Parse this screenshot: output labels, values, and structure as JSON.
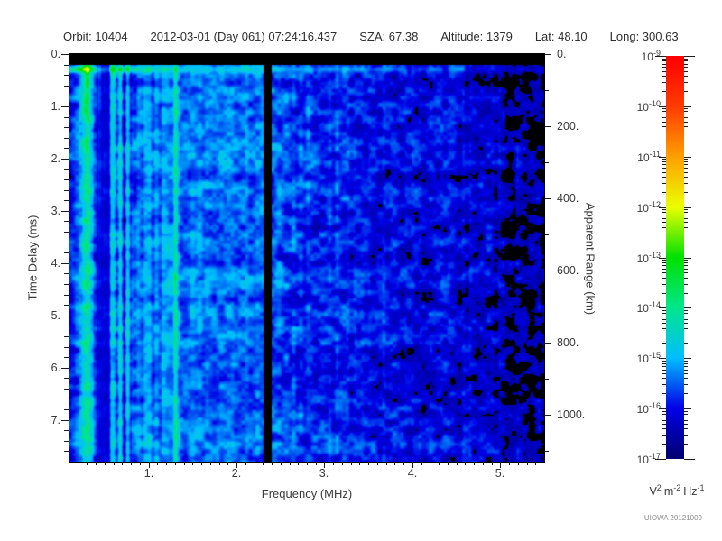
{
  "header": {
    "fields": [
      {
        "label": "Orbit:",
        "value": "10404"
      },
      {
        "label": "",
        "value": "2012-03-01 (Day 061) 07:24:16.437"
      },
      {
        "label": "SZA:",
        "value": "67.38"
      },
      {
        "label": "Altitude:",
        "value": "1379"
      },
      {
        "label": "Lat:",
        "value": "48.10"
      },
      {
        "label": "Long:",
        "value": "300.63"
      }
    ]
  },
  "axes": {
    "x": {
      "title": "Frequency (MHz)",
      "min": 0.1,
      "max": 5.5,
      "minor_step": 0.1,
      "majors": [
        {
          "v": 1,
          "label": "1."
        },
        {
          "v": 2,
          "label": "2."
        },
        {
          "v": 3,
          "label": "3."
        },
        {
          "v": 4,
          "label": "4."
        },
        {
          "v": 5,
          "label": "5."
        }
      ]
    },
    "y_left": {
      "title": "Time Delay (ms)",
      "min": 0,
      "max": 7.8,
      "minor_step": 0.2,
      "majors": [
        {
          "v": 0,
          "label": "0."
        },
        {
          "v": 1,
          "label": "1."
        },
        {
          "v": 2,
          "label": "2."
        },
        {
          "v": 3,
          "label": "3."
        },
        {
          "v": 4,
          "label": "4."
        },
        {
          "v": 5,
          "label": "5."
        },
        {
          "v": 6,
          "label": "6."
        },
        {
          "v": 7,
          "label": "7."
        }
      ]
    },
    "y_right": {
      "title": "Apparent Range (km)",
      "min": 0,
      "max": 1130,
      "minor_step": 100,
      "majors": [
        {
          "v": 0,
          "label": "0."
        },
        {
          "v": 200,
          "label": "200."
        },
        {
          "v": 400,
          "label": "400."
        },
        {
          "v": 600,
          "label": "600."
        },
        {
          "v": 800,
          "label": "800."
        },
        {
          "v": 1000,
          "label": "1000."
        }
      ]
    }
  },
  "colorbar": {
    "base": "10",
    "exponents": [
      "-9",
      "-10",
      "-11",
      "-12",
      "-13",
      "-14",
      "-15",
      "-16",
      "-17"
    ],
    "unit_parts": [
      {
        "text": "V",
        "sup": "2"
      },
      {
        "text": "m",
        "sup": "-2"
      },
      {
        "text": "Hz",
        "sup": "-1"
      }
    ],
    "stops": [
      {
        "v": 0.0,
        "color": "#000070"
      },
      {
        "v": 0.125,
        "color": "#0000e6"
      },
      {
        "v": 0.25,
        "color": "#00beff"
      },
      {
        "v": 0.375,
        "color": "#00e68c"
      },
      {
        "v": 0.5,
        "color": "#00e100"
      },
      {
        "v": 0.625,
        "color": "#ebff00"
      },
      {
        "v": 0.75,
        "color": "#ffa000"
      },
      {
        "v": 0.875,
        "color": "#ff3c00"
      },
      {
        "v": 1.0,
        "color": "#ff0000"
      }
    ]
  },
  "footer": {
    "credit": "UIOWA 20121009"
  },
  "chart_data": {
    "type": "heatmap",
    "title": "Orbit: 10404  2012-03-01 (Day 061) 07:24:16.437  SZA: 67.38  Altitude: 1379  Lat: 48.10  Long: 300.63",
    "meta": {
      "orbit": 10404,
      "date": "2012-03-01",
      "day_of_year": 61,
      "time": "07:24:16.437",
      "sza_deg": 67.38,
      "altitude_km": 1379,
      "lat_deg": 48.1,
      "long_deg": 300.63
    },
    "x": {
      "label": "Frequency (MHz)",
      "min": 0.1,
      "max": 5.5,
      "tick_labels": [
        "1.",
        "2.",
        "3.",
        "4.",
        "5."
      ]
    },
    "y": {
      "label": "Time Delay (ms)",
      "min": 0,
      "max": 7.8,
      "tick_labels": [
        "0.",
        "1.",
        "2.",
        "3.",
        "4.",
        "5.",
        "6.",
        "7."
      ]
    },
    "y2": {
      "label": "Apparent Range (km)",
      "min": 0,
      "max": 1130,
      "tick_labels": [
        "0.",
        "200.",
        "400.",
        "600.",
        "800.",
        "1000."
      ]
    },
    "z": {
      "label": "V^2 m^-2 Hz^-1",
      "scale": "log",
      "min": 1e-17,
      "max": 1e-09,
      "decade_labels": [
        "10^-9",
        "10^-10",
        "10^-11",
        "10^-12",
        "10^-13",
        "10^-14",
        "10^-15",
        "10^-16",
        "10^-17"
      ]
    },
    "legend_position": "right-colorbar",
    "grid": false,
    "features": [
      {
        "name": "transmit-blank-band",
        "desc": "solid black band across all frequencies for time delay below ~0.2 ms"
      },
      {
        "name": "surface-echo-line",
        "desc": "bright cyan-green horizontal line at ~0.3 ms delay spanning all frequencies, brightest (green, ~1e-13) at low frequency, fading to blue by 5 MHz"
      },
      {
        "name": "plasma-oscillation-streaks",
        "desc": "bright green/cyan vertical streaks filling full delay range at frequencies below ~0.6 MHz, strongest near top"
      },
      {
        "name": "dark-column-low-freq",
        "desc": "darker vertical band near 0.45 MHz, full height"
      },
      {
        "name": "bright-harmonic-line",
        "desc": "thin bright cyan vertical line near 1.3 MHz, full height"
      },
      {
        "name": "black-gap-column",
        "desc": "black vertical data gap near 2.35 MHz, full height"
      },
      {
        "name": "noise-floor-gradient",
        "desc": "diffuse blue noise (~1e-16 to 1e-15) whose intensity decreases with frequency; frequent black dropout patches above ~4 MHz"
      }
    ]
  }
}
